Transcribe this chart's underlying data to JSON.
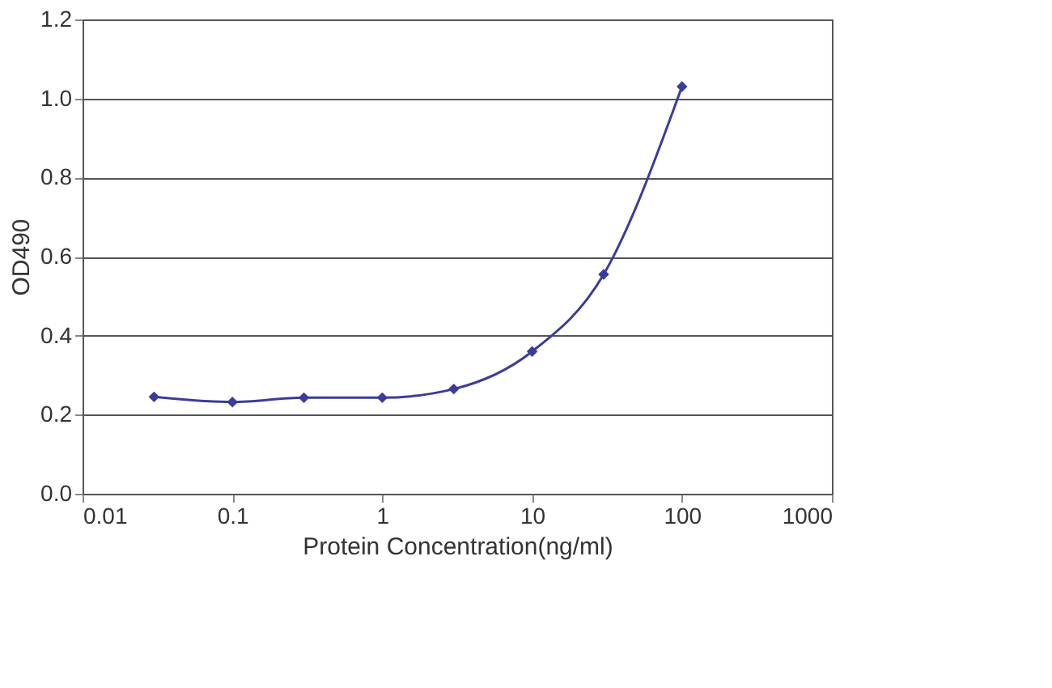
{
  "chart_data": {
    "type": "line",
    "xlabel": "Protein Concentration(ng/ml)",
    "ylabel": "OD490",
    "x": [
      0.03,
      0.1,
      0.3,
      1,
      3,
      10,
      30,
      100
    ],
    "series": [
      {
        "color": "#3b3b9c",
        "values": [
          0.245,
          0.232,
          0.243,
          0.243,
          0.265,
          0.36,
          0.555,
          1.03
        ]
      }
    ],
    "log": "x",
    "xlim": [
      0.01,
      1000
    ],
    "xticks": [
      0.01,
      0.1,
      1,
      10,
      100,
      1000
    ],
    "ylim": [
      0,
      1.2
    ],
    "yticks": [
      {
        "value": 0,
        "label": "0.0"
      },
      {
        "value": 0.2,
        "label": "0.2"
      },
      {
        "value": 0.4,
        "label": "0.4"
      },
      {
        "value": 0.6,
        "label": "0.6"
      },
      {
        "value": 0.8,
        "label": "0.8"
      },
      {
        "value": 1.0,
        "label": "1.0"
      },
      {
        "value": 1.2,
        "label": "1.2"
      }
    ],
    "grid": "y",
    "marker": "diamond",
    "line_style": "solid"
  }
}
